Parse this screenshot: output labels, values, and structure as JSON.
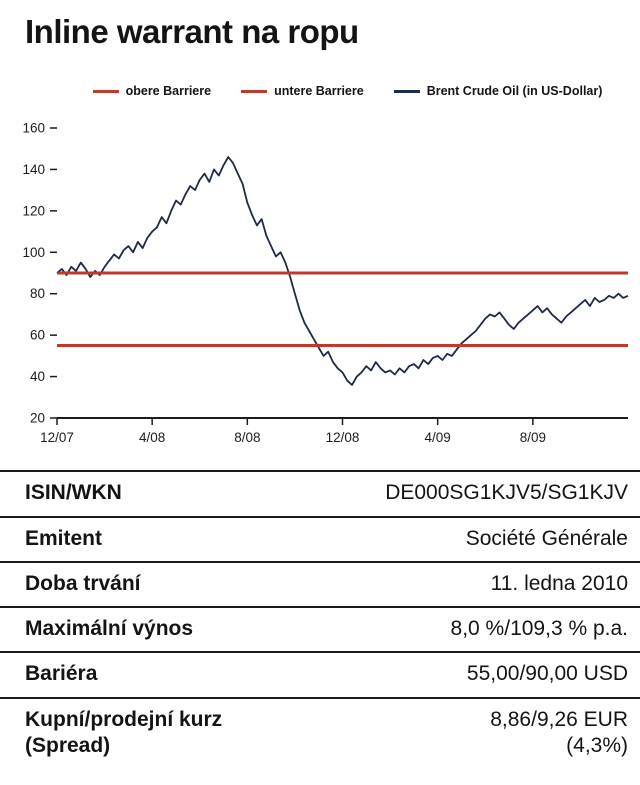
{
  "page_title": "Inline warrant na ropu",
  "legend": {
    "items": [
      {
        "label": "obere Barriere",
        "color": "#c0392b",
        "icon": "upper-barrier-line-icon"
      },
      {
        "label": "untere Barriere",
        "color": "#c0392b",
        "icon": "lower-barrier-line-icon"
      },
      {
        "label": "Brent Crude Oil (in US-Dollar)",
        "color": "#1c2b47",
        "icon": "brent-line-icon"
      }
    ]
  },
  "chart_data": {
    "type": "line",
    "title": "",
    "xlabel": "",
    "ylabel": "",
    "grid": false,
    "legend_position": "top",
    "x_tick_labels": [
      "12/07",
      "4/08",
      "8/08",
      "12/08",
      "4/09",
      "8/09"
    ],
    "x_tick_positions_months": [
      0,
      4,
      8,
      12,
      16,
      20
    ],
    "x_range_months": [
      0,
      24
    ],
    "y_ticks": [
      20,
      40,
      60,
      80,
      100,
      120,
      140,
      160
    ],
    "ylim": [
      20,
      160
    ],
    "barrier_color": "#c0392b",
    "barriers": {
      "upper": {
        "label": "obere Barriere",
        "value": 90
      },
      "lower": {
        "label": "untere Barriere",
        "value": 55
      }
    },
    "series": [
      {
        "name": "Brent Crude Oil (in US-Dollar)",
        "color": "#1c2b47",
        "x_start": 0,
        "x_step": 0.2,
        "x_unit": "months since 12/07",
        "values": [
          90,
          92,
          89,
          93,
          91,
          95,
          92,
          88,
          91,
          89,
          93,
          96,
          99,
          97,
          101,
          103,
          100,
          105,
          102,
          107,
          110,
          112,
          117,
          114,
          120,
          125,
          123,
          128,
          132,
          130,
          135,
          138,
          134,
          140,
          137,
          142,
          146,
          143,
          138,
          133,
          124,
          118,
          113,
          116,
          108,
          103,
          98,
          100,
          95,
          88,
          80,
          72,
          66,
          62,
          58,
          54,
          50,
          52,
          47,
          44,
          42,
          38,
          36,
          40,
          42,
          45,
          43,
          47,
          44,
          42,
          43,
          41,
          44,
          42,
          45,
          46,
          44,
          48,
          46,
          49,
          50,
          48,
          51,
          50,
          53,
          56,
          58,
          60,
          62,
          65,
          68,
          70,
          69,
          71,
          68,
          65,
          63,
          66,
          68,
          70,
          72,
          74,
          71,
          73,
          70,
          68,
          66,
          69,
          71,
          73,
          75,
          77,
          74,
          78,
          76,
          77,
          79,
          78,
          80,
          78,
          79
        ]
      }
    ]
  },
  "table": {
    "rows": [
      {
        "label": "ISIN/WKN",
        "value": "DE000SG1KJV5/SG1KJV"
      },
      {
        "label": "Emitent",
        "value": "Société Générale"
      },
      {
        "label": "Doba trvání",
        "value": "11. ledna 2010"
      },
      {
        "label": "Maximální výnos",
        "value": "8,0 %/109,3 % p.a."
      },
      {
        "label": "Bariéra",
        "value": "55,00/90,00 USD"
      },
      {
        "label": "Kupní/prodejní kurz\n(Spread)",
        "value": "8,86/9,26 EUR\n(4,3%)"
      }
    ]
  }
}
